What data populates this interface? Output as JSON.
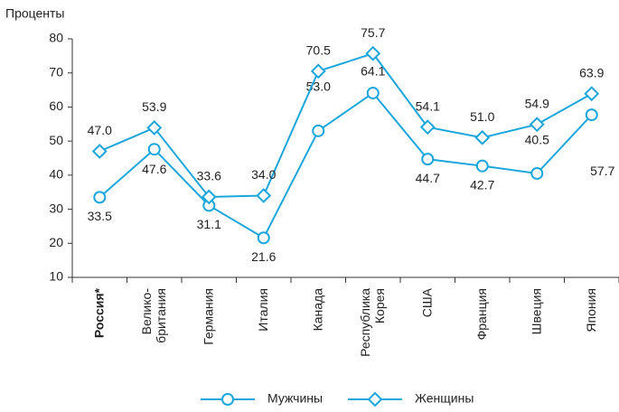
{
  "chart_data": {
    "type": "line",
    "y_label": "Проценты",
    "categories": [
      "Россия*",
      "Велико-\nбритания",
      "Германия",
      "Италия",
      "Канада",
      "Республика\nКорея",
      "США",
      "Франция",
      "Швеция",
      "Япония"
    ],
    "series": [
      {
        "name": "Мужчины",
        "color": "#1ba6dc",
        "marker": "circle",
        "values": [
          33.5,
          47.6,
          31.1,
          21.6,
          53.0,
          64.1,
          44.7,
          42.7,
          40.5,
          57.7
        ],
        "value_labels": [
          "33.5",
          "47.6",
          "31.1",
          "21.6",
          "53.0",
          "64.1",
          "44.7",
          "42.7",
          "40.5",
          "57.7"
        ]
      },
      {
        "name": "Женщины",
        "color": "#1ba6dc",
        "marker": "diamond",
        "values": [
          47.0,
          53.9,
          33.6,
          34.0,
          70.5,
          75.7,
          54.1,
          51.0,
          54.9,
          63.9
        ],
        "value_labels": [
          "47.0",
          "53.9",
          "33.6",
          "34.0",
          "70.5",
          "75.7",
          "54.1",
          "51.0",
          "54.9",
          "63.9"
        ]
      }
    ],
    "ylim": [
      10,
      80
    ],
    "yticks": [
      10,
      20,
      30,
      40,
      50,
      60,
      70,
      80
    ],
    "grid": false
  }
}
